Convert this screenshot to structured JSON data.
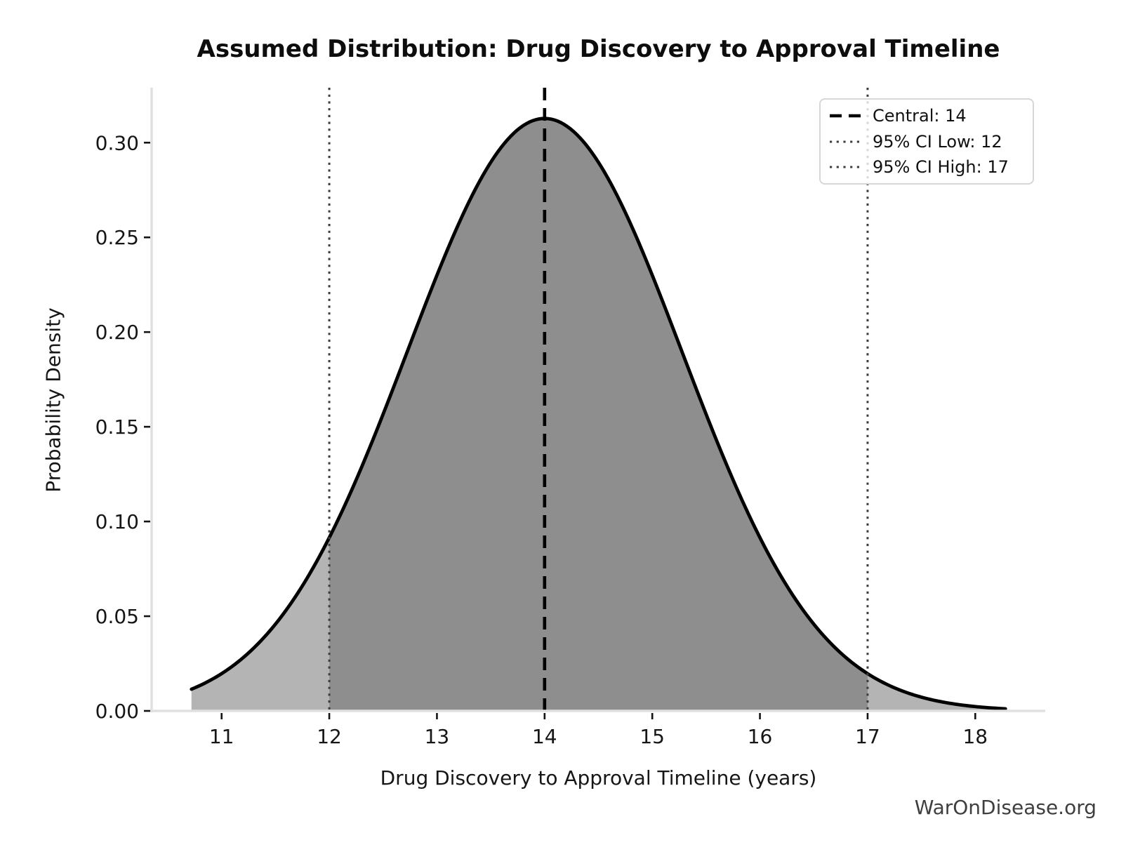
{
  "title": "Assumed Distribution: Drug Discovery to Approval Timeline",
  "watermark": "WarOnDisease.org",
  "chart_data": {
    "type": "area",
    "subtype": "probability-density-curve",
    "title": "Assumed Distribution: Drug Discovery to Approval Timeline",
    "xlabel": "Drug Discovery to Approval Timeline (years)",
    "ylabel": "Probability Density",
    "distribution": "normal",
    "central": 14,
    "ci_low": 12,
    "ci_high": 17,
    "mean": 14,
    "sigma": 1.2755,
    "peak_x": 14,
    "peak_density": 0.3128,
    "curve_x_range": [
      10.72,
      18.28
    ],
    "xlim": [
      10.35,
      18.65
    ],
    "ylim": [
      0,
      0.329
    ],
    "xticks": [
      11,
      12,
      13,
      14,
      15,
      16,
      17,
      18
    ],
    "yticks": [
      {
        "value": 0.0,
        "label": "0.00"
      },
      {
        "value": 0.05,
        "label": "0.05"
      },
      {
        "value": 0.1,
        "label": "0.10"
      },
      {
        "value": 0.15,
        "label": "0.15"
      },
      {
        "value": 0.2,
        "label": "0.20"
      },
      {
        "value": 0.25,
        "label": "0.25"
      },
      {
        "value": 0.3,
        "label": "0.30"
      }
    ],
    "curve_points": [
      [
        10.72,
        0.0115
      ],
      [
        11,
        0.0197
      ],
      [
        11.5,
        0.0458
      ],
      [
        12,
        0.0915
      ],
      [
        12.5,
        0.1567
      ],
      [
        13,
        0.23
      ],
      [
        13.5,
        0.2896
      ],
      [
        14,
        0.3128
      ],
      [
        14.5,
        0.2896
      ],
      [
        15,
        0.23
      ],
      [
        15.5,
        0.1567
      ],
      [
        16,
        0.0915
      ],
      [
        16.5,
        0.0458
      ],
      [
        17,
        0.0197
      ],
      [
        17.5,
        0.0073
      ],
      [
        18,
        0.0023
      ],
      [
        18.28,
        0.0011
      ]
    ],
    "legend": [
      {
        "label": "Central: 14",
        "style": "dashed"
      },
      {
        "label": "95% CI Low: 12",
        "style": "dotted"
      },
      {
        "label": "95% CI High: 17",
        "style": "dotted"
      }
    ],
    "legend_position": "upper right",
    "grid": false,
    "colors": {
      "curve": "#000000",
      "fill_outer": "#b4b4b4",
      "fill_ci": "#8e8e8e",
      "central_line": "#000000",
      "ci_line": "#3d3d3d",
      "spine": "#e0e0e0",
      "tick": "#141414",
      "legend_border": "#d7d7d7"
    }
  }
}
